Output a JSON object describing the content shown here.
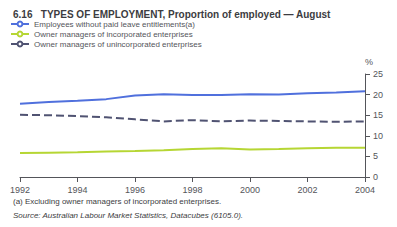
{
  "chart_data": {
    "type": "line",
    "title": "6.16   TYPES OF EMPLOYMENT, Proportion of employed — August",
    "ylabel": "%",
    "x": [
      1992,
      1993,
      1994,
      1995,
      1996,
      1997,
      1998,
      1999,
      2000,
      2001,
      2002,
      2003,
      2004
    ],
    "series": [
      {
        "name": "Employees without paid leave entitlements(a)",
        "line_style": "solid",
        "values": [
          17.8,
          18.2,
          18.5,
          18.9,
          19.8,
          20.1,
          19.9,
          19.9,
          20.1,
          20.0,
          20.3,
          20.5,
          20.8
        ]
      },
      {
        "name": "Owner managers of incorporated enterprises",
        "line_style": "solid",
        "values": [
          5.8,
          5.9,
          6.0,
          6.2,
          6.3,
          6.5,
          6.8,
          7.0,
          6.7,
          6.8,
          7.0,
          7.1,
          7.1
        ]
      },
      {
        "name": "Owner managers of unincorporated enterprises",
        "line_style": "dashed",
        "values": [
          15.1,
          15.0,
          14.8,
          14.5,
          14.0,
          13.5,
          13.8,
          13.5,
          13.7,
          13.6,
          13.5,
          13.4,
          13.5
        ]
      }
    ],
    "xlim": [
      1992,
      2004
    ],
    "xticks": [
      1992,
      1994,
      1996,
      1998,
      2000,
      2002,
      2004
    ],
    "ylim": [
      0,
      25
    ],
    "yticks": [
      0,
      5,
      10,
      15,
      20,
      25
    ],
    "grid": false,
    "legend": "upper left",
    "footnote": "(a) Excluding owner managers of incorporated enterprises.",
    "source": "Source: Australian Labour Market Statistics, Datacubes (6105.0)."
  }
}
